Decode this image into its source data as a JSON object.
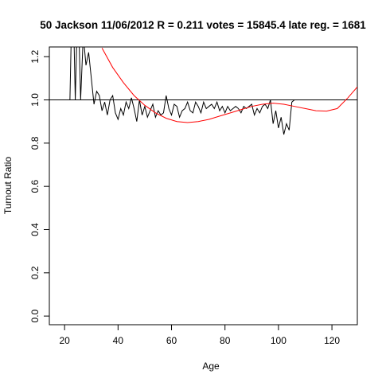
{
  "chart_data": {
    "type": "line",
    "title": "50 Jackson 11/06/2012 R = 0.211 votes = 15845.4 late reg. = 1681",
    "xlabel": "Age",
    "ylabel": "Turnout Ratio",
    "xlim": [
      14.3,
      129.5
    ],
    "ylim": [
      -0.04,
      1.245
    ],
    "xticks": [
      20,
      40,
      60,
      80,
      100,
      120
    ],
    "yticks": [
      {
        "value": 0,
        "label": "0.0"
      },
      0.2,
      0.4,
      0.6,
      0.8,
      {
        "value": 1,
        "label": "1.0"
      },
      1.2
    ],
    "reference_line": 1,
    "series": [
      {
        "color": "#000000",
        "x": [
          22,
          23,
          24,
          25,
          26,
          27,
          28,
          29,
          30,
          31,
          32,
          33,
          34,
          35,
          36,
          37,
          38,
          39,
          40,
          41,
          42,
          43,
          44,
          45,
          46,
          47,
          48,
          49,
          50,
          51,
          52,
          53,
          54,
          55,
          56,
          57,
          58,
          59,
          60,
          61,
          62,
          63,
          64,
          65,
          66,
          67,
          68,
          69,
          70,
          71,
          72,
          73,
          74,
          75,
          76,
          77,
          78,
          79,
          80,
          81,
          82,
          83,
          84,
          85,
          86,
          87,
          88,
          89,
          90,
          91,
          92,
          93,
          94,
          95,
          96,
          97,
          98,
          99,
          100,
          101,
          102,
          103,
          104,
          105,
          106
        ],
        "values": [
          1.0,
          1.6,
          1.0,
          1.5,
          1.0,
          1.3,
          1.16,
          1.22,
          1.1,
          0.98,
          1.04,
          1.02,
          0.95,
          0.99,
          0.93,
          1.0,
          1.02,
          0.94,
          0.91,
          0.96,
          0.93,
          0.99,
          0.96,
          1.01,
          0.96,
          0.9,
          1.0,
          0.93,
          0.97,
          0.92,
          0.95,
          0.98,
          0.92,
          0.95,
          0.93,
          0.94,
          1.02,
          0.96,
          0.93,
          0.98,
          0.97,
          0.92,
          0.95,
          0.96,
          0.99,
          0.95,
          0.94,
          0.99,
          0.97,
          0.94,
          0.99,
          0.96,
          0.97,
          0.98,
          0.96,
          0.99,
          0.95,
          0.97,
          0.94,
          0.97,
          0.95,
          0.96,
          0.97,
          0.96,
          0.94,
          0.97,
          0.96,
          0.97,
          0.98,
          0.93,
          0.96,
          0.94,
          0.97,
          0.98,
          0.96,
          1.0,
          0.89,
          0.95,
          0.87,
          0.92,
          0.84,
          0.89,
          0.86,
          0.99,
          1.0
        ]
      },
      {
        "color": "#ff0000",
        "x": [
          34,
          38,
          42,
          46,
          50,
          54,
          58,
          62,
          66,
          70,
          74,
          78,
          82,
          86,
          90,
          94,
          98,
          102,
          106,
          110,
          114,
          118,
          122,
          126,
          129.5
        ],
        "values": [
          1.24,
          1.15,
          1.08,
          1.02,
          0.975,
          0.94,
          0.915,
          0.9,
          0.895,
          0.9,
          0.91,
          0.925,
          0.94,
          0.955,
          0.97,
          0.98,
          0.985,
          0.98,
          0.97,
          0.96,
          0.95,
          0.948,
          0.96,
          1.01,
          1.06
        ]
      }
    ]
  }
}
